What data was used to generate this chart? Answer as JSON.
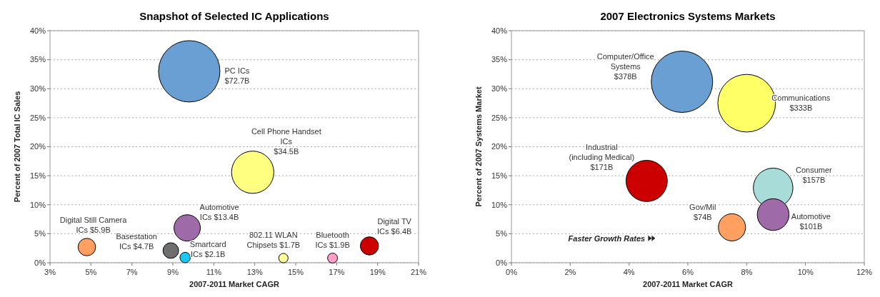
{
  "chart_data": [
    {
      "type": "bubble",
      "title": "Snapshot of Selected IC Applications",
      "xlabel": "2007-2011 Market CAGR",
      "ylabel": "Percent of 2007 Total IC Sales",
      "xlim": [
        3,
        21
      ],
      "xticks": [
        {
          "value": 3,
          "label": "3%"
        },
        {
          "value": 5,
          "label": "5%"
        },
        {
          "value": 7,
          "label": "7%"
        },
        {
          "value": 9,
          "label": "9%"
        },
        {
          "value": 11,
          "label": "11%"
        },
        {
          "value": 13,
          "label": "13%"
        },
        {
          "value": 15,
          "label": "15%"
        },
        {
          "value": 17,
          "label": "17%"
        },
        {
          "value": 19,
          "label": "19%"
        },
        {
          "value": 21,
          "label": "21%"
        }
      ],
      "ylim": [
        0,
        40
      ],
      "yticks": [
        {
          "value": 0,
          "label": "0%"
        },
        {
          "value": 5,
          "label": "5%"
        },
        {
          "value": 10,
          "label": "10%"
        },
        {
          "value": 15,
          "label": "15%"
        },
        {
          "value": 20,
          "label": "20%"
        },
        {
          "value": 25,
          "label": "25%"
        },
        {
          "value": 30,
          "label": "30%"
        },
        {
          "value": 35,
          "label": "35%"
        },
        {
          "value": 40,
          "label": "40%"
        }
      ],
      "grid": "y",
      "series": [
        {
          "name": "PC ICs",
          "color": "#6a9fd4",
          "x": [
            9.8
          ],
          "values": [
            33
          ],
          "sizes": [
            72.7
          ],
          "value_labels": [
            "$72.7B"
          ]
        },
        {
          "name": "Cell Phone Handset\nICs",
          "color": "#ffff80",
          "x": [
            12.9
          ],
          "values": [
            15.6
          ],
          "sizes": [
            34.5
          ],
          "value_labels": [
            "$34.5B"
          ]
        },
        {
          "name": "Automotive\nICs",
          "color": "#9e6aa8",
          "x": [
            9.7
          ],
          "values": [
            6
          ],
          "sizes": [
            13.4
          ],
          "value_labels": [
            "$13.4B"
          ]
        },
        {
          "name": "Digital Still Camera\nICs",
          "color": "#ffa060",
          "x": [
            4.8
          ],
          "values": [
            2.7
          ],
          "sizes": [
            5.9
          ],
          "value_labels": [
            "$5.9B"
          ]
        },
        {
          "name": "Basestation\nICs",
          "color": "#6e6e6e",
          "x": [
            8.9
          ],
          "values": [
            2.1
          ],
          "sizes": [
            4.7
          ],
          "value_labels": [
            "$4.7B"
          ]
        },
        {
          "name": "Smartcard\nICs",
          "color": "#19c8f0",
          "x": [
            9.6
          ],
          "values": [
            0.9
          ],
          "sizes": [
            2.1
          ],
          "value_labels": [
            "$2.1B"
          ]
        },
        {
          "name": "802.11 WLAN\nChipsets",
          "color": "#ffff99",
          "x": [
            14.4
          ],
          "values": [
            0.8
          ],
          "sizes": [
            1.7
          ],
          "value_labels": [
            "$1.7B"
          ]
        },
        {
          "name": "Bluetooth\nICs",
          "color": "#ffa0c8",
          "x": [
            16.8
          ],
          "values": [
            0.8
          ],
          "sizes": [
            1.9
          ],
          "value_labels": [
            "$1.9B"
          ]
        },
        {
          "name": "Digital TV\nICs",
          "color": "#cc0000",
          "x": [
            18.6
          ],
          "values": [
            2.9
          ],
          "sizes": [
            6.4
          ],
          "value_labels": [
            "$6.4B"
          ]
        }
      ]
    },
    {
      "type": "bubble",
      "title": "2007 Electronics Systems Markets",
      "xlabel": "2007-2011 Market CAGR",
      "ylabel": "Percent of 2007 Systems Market",
      "xlim": [
        0,
        12
      ],
      "xticks": [
        {
          "value": 0,
          "label": "0%"
        },
        {
          "value": 2,
          "label": "2%"
        },
        {
          "value": 4,
          "label": "4%"
        },
        {
          "value": 6,
          "label": "6%"
        },
        {
          "value": 8,
          "label": "8%"
        },
        {
          "value": 10,
          "label": "10%"
        },
        {
          "value": 12,
          "label": "12%"
        }
      ],
      "ylim": [
        0,
        40
      ],
      "yticks": [
        {
          "value": 0,
          "label": "0%"
        },
        {
          "value": 5,
          "label": "5%"
        },
        {
          "value": 10,
          "label": "10%"
        },
        {
          "value": 15,
          "label": "15%"
        },
        {
          "value": 20,
          "label": "20%"
        },
        {
          "value": 25,
          "label": "25%"
        },
        {
          "value": 30,
          "label": "30%"
        },
        {
          "value": 35,
          "label": "35%"
        },
        {
          "value": 40,
          "label": "40%"
        }
      ],
      "grid": "y",
      "series": [
        {
          "name": "Computer/Office\nSystems",
          "color": "#6a9fd4",
          "x": [
            5.8
          ],
          "values": [
            31.2
          ],
          "sizes": [
            378
          ],
          "value_labels": [
            "$378B"
          ]
        },
        {
          "name": "Communications",
          "color": "#ffff66",
          "x": [
            8
          ],
          "values": [
            27.5
          ],
          "sizes": [
            333
          ],
          "value_labels": [
            "$333B"
          ]
        },
        {
          "name": "Industrial\n(including Medical)",
          "color": "#cc0000",
          "x": [
            4.6
          ],
          "values": [
            14.1
          ],
          "sizes": [
            171
          ],
          "value_labels": [
            "$171B"
          ]
        },
        {
          "name": "Consumer",
          "color": "#a8dcd8",
          "x": [
            8.9
          ],
          "values": [
            12.9
          ],
          "sizes": [
            157
          ],
          "value_labels": [
            "$157B"
          ]
        },
        {
          "name": "Automotive",
          "color": "#9e6aa8",
          "x": [
            8.9
          ],
          "values": [
            8.3
          ],
          "sizes": [
            101
          ],
          "value_labels": [
            "$101B"
          ]
        },
        {
          "name": "Gov/Mil",
          "color": "#ffa060",
          "x": [
            7.5
          ],
          "values": [
            6.1
          ],
          "sizes": [
            74
          ],
          "value_labels": [
            "$74B"
          ]
        }
      ],
      "annotations": [
        "Faster Growth Rates"
      ]
    }
  ]
}
